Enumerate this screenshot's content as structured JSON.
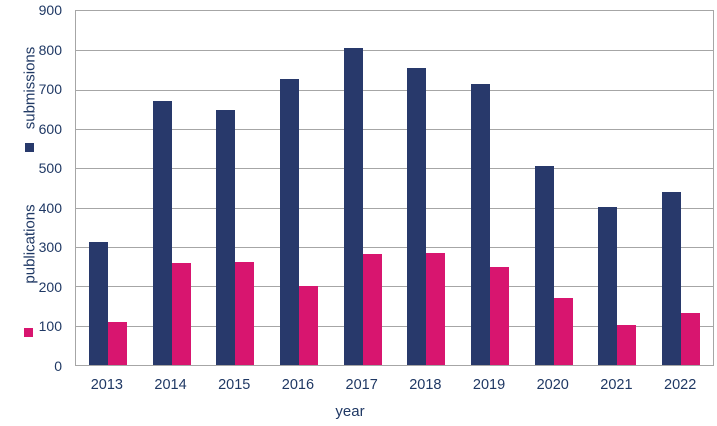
{
  "chart_data": {
    "type": "bar",
    "title": "",
    "xlabel": "year",
    "ylabel": "",
    "categories": [
      "2013",
      "2014",
      "2015",
      "2016",
      "2017",
      "2018",
      "2019",
      "2020",
      "2021",
      "2022"
    ],
    "series": [
      {
        "name": "submissions",
        "color": "#28396b",
        "values": [
          312,
          670,
          648,
          726,
          806,
          756,
          714,
          505,
          401,
          440
        ]
      },
      {
        "name": "publications",
        "color": "#d8156f",
        "values": [
          110,
          259,
          261,
          201,
          281,
          286,
          250,
          171,
          103,
          132
        ]
      }
    ],
    "yticks": [
      0,
      100,
      200,
      300,
      400,
      500,
      600,
      700,
      800,
      900
    ],
    "ylim": [
      0,
      900
    ],
    "grid": true,
    "legend_position": "left-rotated"
  },
  "colors": {
    "axis_text": "#1f3864",
    "gridline": "#a6a6a6",
    "plot_border": "#a6a6a6",
    "background": "#ffffff",
    "submissions_bar": "#28396b",
    "publications_bar": "#d8156f"
  }
}
